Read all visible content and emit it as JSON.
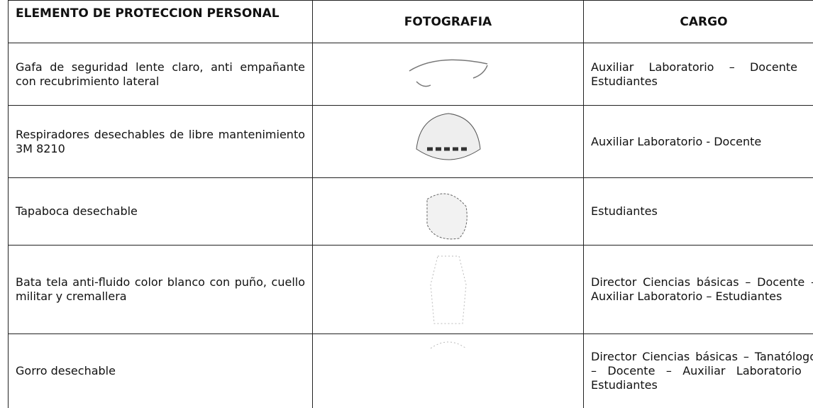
{
  "table": {
    "header": [
      "ELEMENTO DE PROTECCION PERSONAL",
      "FOTOGRAFIA",
      "CARGO"
    ],
    "rows": [
      {
        "elemento": "Gafa de seguridad lente claro, anti empañante con recubrimiento lateral",
        "cargo": "Auxiliar Laboratorio – Docente - Estudiantes"
      },
      {
        "elemento": "Respiradores desechables de libre mantenimiento 3M 8210",
        "cargo": "Auxiliar Laboratorio - Docente"
      },
      {
        "elemento": "Tapaboca desechable",
        "cargo": "Estudiantes"
      },
      {
        "elemento": "Bata tela anti-fluido color blanco con puño, cuello militar y cremallera",
        "cargo": "Director Ciencias básicas – Docente – Auxiliar Laboratorio – Estudiantes"
      },
      {
        "elemento": "Gorro desechable",
        "cargo": "Director Ciencias básicas – Tanatólogo – Docente – Auxiliar Laboratorio -Estudiantes"
      }
    ]
  }
}
